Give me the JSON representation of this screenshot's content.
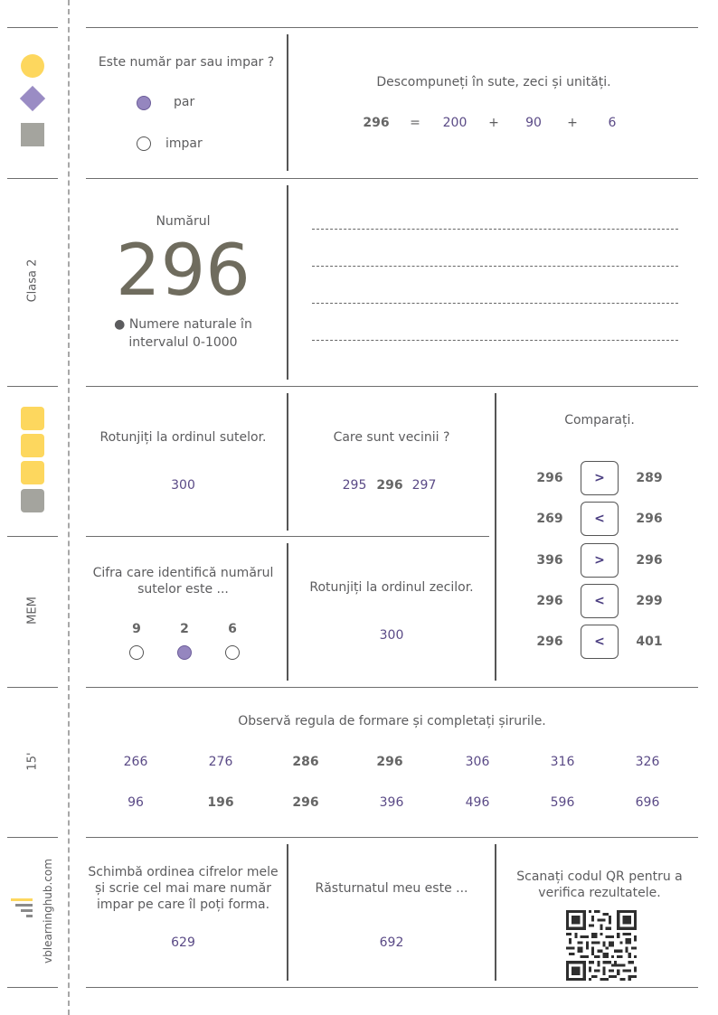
{
  "sidebar": {
    "labels": {
      "class": "Clasa 2",
      "subject": "MEM",
      "time": "15'",
      "site": "vblearninghub.com"
    },
    "colors": {
      "yellow": "#fdd75e",
      "purple": "#9a8cc4",
      "gray": "#a4a49e"
    }
  },
  "header": {
    "parity": {
      "question": "Este număr par sau impar ?",
      "options": [
        "par",
        "impar"
      ],
      "selected": "par"
    },
    "decompose": {
      "instruction": "Descompuneți în sute, zeci și unități.",
      "number": "296",
      "eq": "=",
      "hundreds": "200",
      "plus1": "+",
      "tens": "90",
      "plus2": "+",
      "units": "6"
    }
  },
  "number_card": {
    "caption": "Numărul",
    "number": "296",
    "topic_line1": "● Numere naturale în",
    "topic_line2": "intervalul 0-1000"
  },
  "round_hundreds": {
    "question": "Rotunjiți la ordinul sutelor.",
    "answer": "300"
  },
  "neighbors": {
    "question": "Care sunt vecinii ?",
    "left": "295",
    "center": "296",
    "right": "297"
  },
  "compare": {
    "title": "Comparați.",
    "rows": [
      {
        "left": "296",
        "sign": ">",
        "right": "289"
      },
      {
        "left": "269",
        "sign": "<",
        "right": "296"
      },
      {
        "left": "396",
        "sign": ">",
        "right": "296"
      },
      {
        "left": "296",
        "sign": "<",
        "right": "299"
      },
      {
        "left": "296",
        "sign": "<",
        "right": "401"
      }
    ]
  },
  "hundreds_digit": {
    "question_line1": "Cifra care identifică numărul",
    "question_line2": "sutelor este ...",
    "options": [
      "9",
      "2",
      "6"
    ],
    "selected": "2"
  },
  "round_tens": {
    "question": "Rotunjiți la ordinul zecilor.",
    "answer": "300"
  },
  "sequences": {
    "instruction": "Observă regula de formare și completați șirurile.",
    "row1": [
      "266",
      "276",
      "286",
      "296",
      "306",
      "316",
      "326"
    ],
    "row2": [
      "96",
      "196",
      "296",
      "396",
      "496",
      "596",
      "696"
    ]
  },
  "reorder": {
    "line1": "Schimbă ordinea cifrelor mele",
    "line2": "și scrie cel mai mare număr",
    "line3": "impar pe care îl poți forma.",
    "answer": "629"
  },
  "reverse": {
    "question": "Răsturnatul meu este ...",
    "answer": "692"
  },
  "qr": {
    "line1": "Scanați codul QR pentru a",
    "line2": "verifica rezultatele."
  }
}
